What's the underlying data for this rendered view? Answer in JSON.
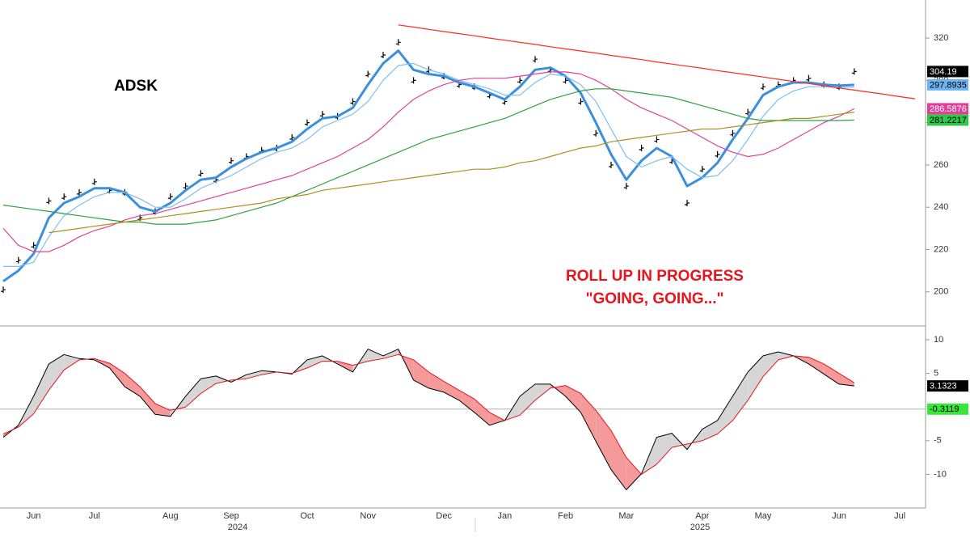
{
  "chart_data": [
    {
      "type": "line",
      "title": "ADSK",
      "annotations": [
        "ROLL UP IN PROGRESS",
        "\"GOING, GOING...\""
      ],
      "annotation_color": "#e8141c",
      "categories": [
        null,
        null,
        "Jun",
        null,
        null,
        null,
        "Jul",
        null,
        null,
        null,
        null,
        "Aug",
        null,
        null,
        null,
        "Sep",
        null,
        null,
        null,
        null,
        "Oct",
        null,
        null,
        null,
        "Nov",
        null,
        null,
        null,
        null,
        "Dec",
        null,
        null,
        null,
        "Jan",
        null,
        null,
        null,
        "Feb",
        null,
        null,
        null,
        "Mar",
        null,
        null,
        null,
        null,
        "Apr",
        null,
        null,
        null,
        "May",
        null,
        null,
        null,
        null,
        "Jun",
        null,
        null,
        null,
        "Jul",
        null
      ],
      "year_labels": [
        "2024",
        "2025"
      ],
      "ylim": [
        185,
        338
      ],
      "yticks": [
        200,
        220,
        240,
        260,
        280,
        300,
        320
      ],
      "series": [
        {
          "color": "#000000",
          "style": "bars",
          "last_label": true,
          "label_color": "#000000",
          "label_text_color": "#ffffff",
          "values": [
            201,
            215,
            222,
            243,
            245,
            247,
            252,
            248,
            247,
            235,
            238,
            245,
            250,
            256,
            253,
            262,
            264,
            267,
            268,
            273,
            280,
            284,
            283,
            290,
            303,
            312,
            318,
            300,
            305,
            302,
            298,
            297,
            293,
            290,
            300,
            310,
            305,
            300,
            290,
            275,
            260,
            250,
            268,
            272,
            262,
            242,
            258,
            265,
            275,
            285,
            297,
            298,
            300,
            301,
            298,
            297,
            304.19,
            null,
            null,
            null,
            null
          ]
        },
        {
          "color": "#3b8fdc",
          "width": 3,
          "last_label": true,
          "label_color": "#6db3f2",
          "label_text_color": "#000000",
          "values": [
            205,
            210,
            218,
            235,
            242,
            245,
            249,
            249,
            247,
            240,
            238,
            242,
            248,
            253,
            254,
            259,
            263,
            266,
            268,
            271,
            277,
            282,
            283,
            287,
            298,
            308,
            314,
            305,
            303,
            302,
            299,
            297,
            294,
            291,
            297,
            305,
            306,
            302,
            294,
            280,
            265,
            253,
            262,
            268,
            264,
            250,
            254,
            261,
            272,
            282,
            293,
            297,
            299,
            299,
            298,
            297.5,
            297.8935,
            null,
            null,
            null,
            null
          ]
        },
        {
          "color": "#7cbef5",
          "width": 1.2,
          "values": [
            212,
            212,
            214,
            226,
            236,
            241,
            245,
            247,
            247,
            244,
            240,
            240,
            244,
            249,
            252,
            255,
            259,
            263,
            266,
            268,
            272,
            278,
            281,
            284,
            290,
            300,
            307,
            308,
            305,
            303,
            300,
            298,
            296,
            293,
            293,
            299,
            303,
            302,
            298,
            290,
            277,
            264,
            259,
            262,
            264,
            258,
            254,
            255,
            262,
            272,
            283,
            291,
            295,
            297,
            297,
            296.5,
            296.8,
            null,
            null,
            null,
            null
          ]
        },
        {
          "color": "#e0409a",
          "width": 1.2,
          "last_label": true,
          "label_color": "#e0409a",
          "label_text_color": "#ffffff",
          "values": [
            230,
            222,
            219,
            219,
            222,
            226,
            229,
            231,
            234,
            236,
            237,
            239,
            241,
            243,
            245,
            247,
            249,
            251,
            253,
            255,
            258,
            261,
            264,
            268,
            272,
            278,
            285,
            291,
            295,
            298,
            300,
            301,
            301,
            301,
            302,
            303,
            304,
            304,
            303,
            300,
            296,
            291,
            287,
            284,
            281,
            277,
            273,
            269,
            266,
            264,
            265,
            268,
            272,
            276,
            280,
            283,
            286.5876,
            null,
            null,
            null,
            null
          ]
        },
        {
          "color": "#2ea043",
          "width": 1.2,
          "last_label": true,
          "label_color": "#2ec84a",
          "label_text_color": "#000000",
          "values": [
            241,
            240,
            239,
            238,
            237,
            236,
            235,
            234,
            233,
            233,
            232,
            232,
            232,
            233,
            234,
            236,
            238,
            240,
            242,
            245,
            248,
            251,
            254,
            257,
            260,
            263,
            266,
            269,
            272,
            274,
            276,
            278,
            280,
            282,
            285,
            288,
            291,
            293,
            295,
            296,
            296,
            295,
            294,
            293,
            292,
            290,
            288,
            286,
            284,
            282,
            281,
            281,
            281,
            281,
            281,
            281,
            281.2217,
            null,
            null,
            null,
            null
          ]
        },
        {
          "color": "#a6921e",
          "width": 1.2,
          "values": [
            null,
            null,
            null,
            228,
            229,
            230,
            231,
            232,
            233,
            234,
            235,
            236,
            237,
            238,
            239,
            240,
            241,
            242,
            244,
            245,
            246,
            248,
            249,
            250,
            251,
            252,
            253,
            254,
            255,
            256,
            257,
            258,
            258,
            259,
            261,
            262,
            264,
            266,
            268,
            269,
            271,
            272,
            273,
            274,
            275,
            276,
            277,
            277,
            278,
            279,
            280,
            281,
            282,
            282,
            283,
            284,
            285,
            null,
            null,
            null,
            null
          ]
        },
        {
          "color": "#ff2a1a",
          "width": 1.2,
          "values": [
            null,
            null,
            null,
            null,
            null,
            null,
            null,
            null,
            null,
            null,
            null,
            null,
            null,
            null,
            null,
            null,
            null,
            null,
            null,
            null,
            null,
            null,
            null,
            null,
            null,
            null,
            326.2,
            325.2,
            324.1,
            323.1,
            322.1,
            321.1,
            320.0,
            319.0,
            318.0,
            317.0,
            315.9,
            314.9,
            313.9,
            312.9,
            311.8,
            310.8,
            309.8,
            308.7,
            307.7,
            306.7,
            305.7,
            304.6,
            303.6,
            302.6,
            301.6,
            300.5,
            299.5,
            298.5,
            297.5,
            296.4,
            295.4,
            294.4,
            293.4,
            292.3,
            291.3
          ]
        }
      ]
    },
    {
      "type": "line",
      "ylim": [
        -15,
        11.8
      ],
      "yticks": [
        -10,
        -5,
        5,
        10
      ],
      "hline": {
        "value": -0.3119,
        "color": "#b0b0b0",
        "label_color": "#39e639",
        "label_text_color": "#000000"
      },
      "fill_between": true,
      "fill_up": "#d6d6d6",
      "fill_down": "#f59a9a",
      "series": [
        {
          "color": "#000000",
          "width": 1,
          "last_label": true,
          "label_color": "#000000",
          "label_text_color": "#ffffff",
          "values": [
            -4.5,
            -2.7,
            1.6,
            6.4,
            7.8,
            7.2,
            7.0,
            5.8,
            3.0,
            1.6,
            -1.1,
            -1.4,
            1.6,
            4.2,
            4.6,
            3.7,
            4.8,
            5.4,
            5.2,
            4.9,
            7.0,
            7.6,
            6.4,
            5.2,
            8.6,
            7.6,
            8.6,
            4.0,
            2.8,
            2.2,
            1.0,
            -0.8,
            -2.7,
            -2.0,
            1.6,
            3.4,
            3.4,
            1.6,
            -0.8,
            -5.1,
            -9.3,
            -12.3,
            -9.9,
            -4.5,
            -3.9,
            -6.3,
            -3.3,
            -2.0,
            1.6,
            5.2,
            7.6,
            8.2,
            7.6,
            6.4,
            4.9,
            3.4,
            3.1323,
            null,
            null,
            null,
            null
          ]
        },
        {
          "color": "#e8141c",
          "width": 1,
          "values": [
            -4,
            -3,
            -1,
            2.5,
            5.5,
            7,
            7.2,
            6.5,
            5,
            3,
            0.5,
            -0.5,
            0,
            2,
            3.5,
            4,
            4.2,
            4.8,
            5.2,
            5,
            5.8,
            6.8,
            6.8,
            6.2,
            6.8,
            7.2,
            7.8,
            7.0,
            5.2,
            3.8,
            2.5,
            1.2,
            -0.8,
            -2,
            -1.2,
            1,
            2.8,
            3.2,
            2.0,
            -0.5,
            -3.5,
            -7.5,
            -10,
            -8.5,
            -6,
            -5.5,
            -5,
            -4,
            -2,
            1,
            4.5,
            7,
            7.6,
            7.4,
            6.4,
            5,
            3.6,
            null,
            null,
            null,
            null
          ]
        }
      ]
    }
  ]
}
